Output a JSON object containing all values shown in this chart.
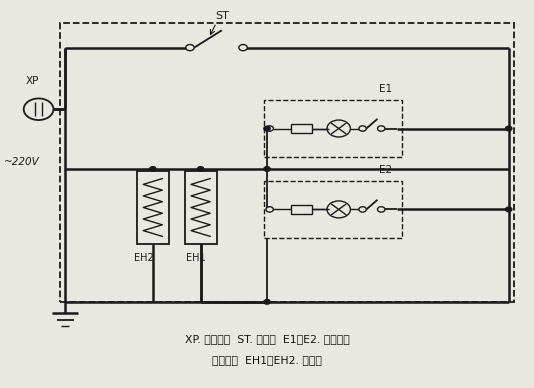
{
  "bg_color": "#e8e8e0",
  "line_color": "#1a1a1a",
  "fig_w": 5.34,
  "fig_h": 3.88,
  "caption_line1": "XP. 电源插头  ST. 调温器  E1、E2. 带指示灯",
  "caption_line2": "功率开关  EH1、EH2. 发热器",
  "label_XP": "XP",
  "label_220V": "~220V",
  "label_ST": "ST",
  "label_E1": "E1",
  "label_E2": "E2",
  "label_EH1": "EH1",
  "label_EH2": "EH2"
}
